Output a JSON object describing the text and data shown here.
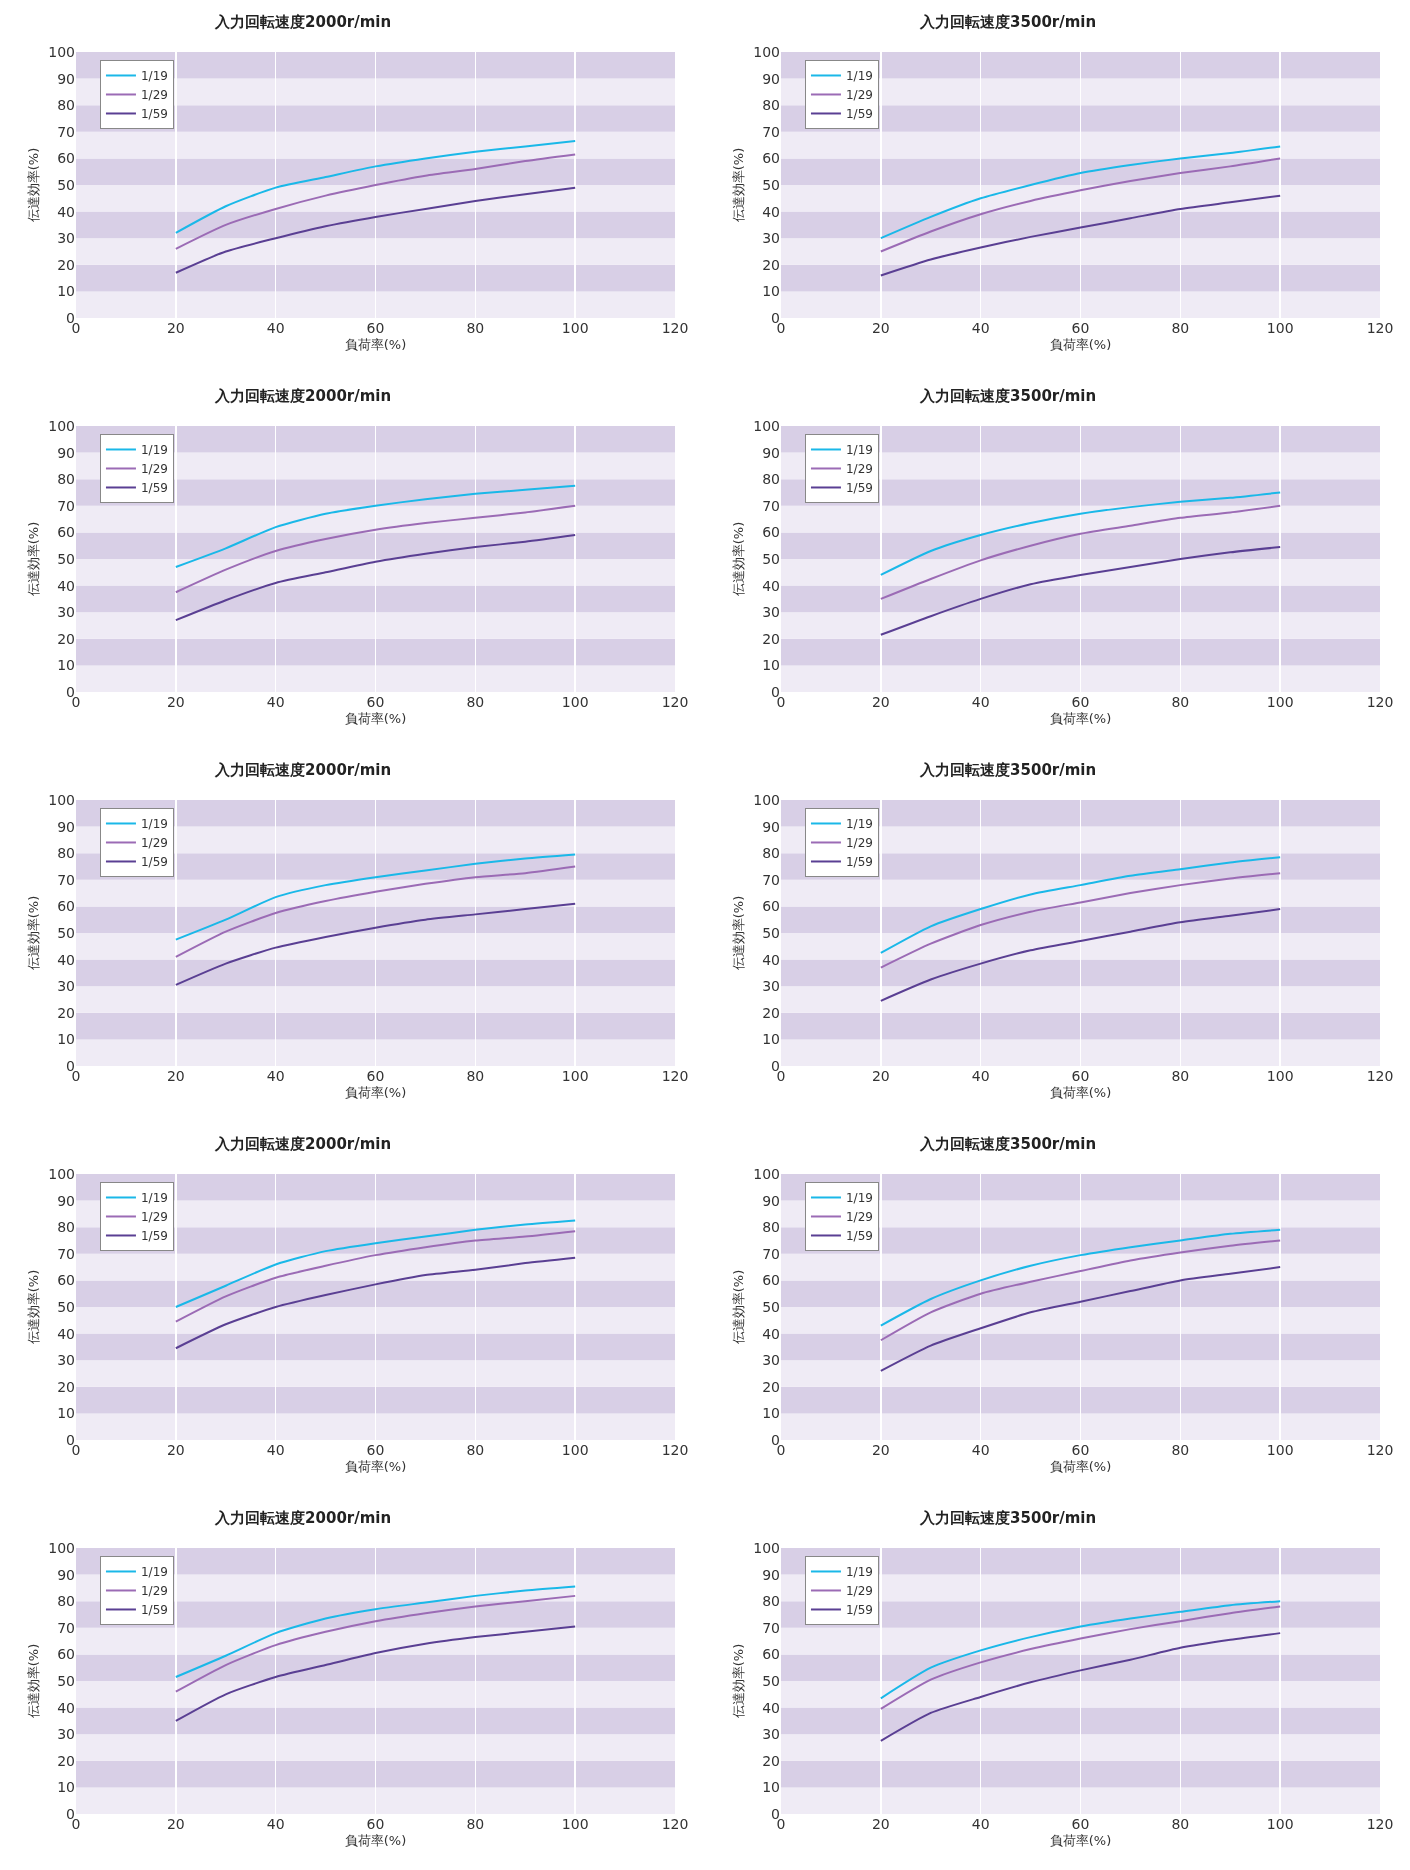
{
  "chart_data": [
    {
      "type": "line",
      "title": "入力回転速度2000r/min",
      "xlabel": "負荷率(%)",
      "ylabel": "伝達効率(%)",
      "x": [
        20,
        30,
        40,
        50,
        60,
        70,
        80,
        90,
        100
      ],
      "xlim": [
        0,
        120
      ],
      "xticks": [
        0,
        20,
        40,
        60,
        80,
        100,
        120
      ],
      "ylim": [
        0,
        100
      ],
      "yticks": [
        0,
        10,
        20,
        30,
        40,
        50,
        60,
        70,
        80,
        90,
        100
      ],
      "grid": true,
      "legend": "top left",
      "series": [
        {
          "name": "1/19",
          "color": "#1ab8e8",
          "values": [
            32,
            42,
            49,
            53,
            57,
            60,
            62.5,
            64.5,
            66.5
          ]
        },
        {
          "name": "1/29",
          "color": "#9b6bb5",
          "values": [
            26,
            35,
            41,
            46,
            50,
            53.5,
            56,
            59,
            61.5
          ]
        },
        {
          "name": "1/59",
          "color": "#5a3f93",
          "values": [
            17,
            25,
            30,
            34.5,
            38,
            41,
            44,
            46.5,
            49
          ]
        }
      ]
    },
    {
      "type": "line",
      "title": "入力回転速度3500r/min",
      "xlabel": "負荷率(%)",
      "ylabel": "伝達効率(%)",
      "x": [
        20,
        30,
        40,
        50,
        60,
        70,
        80,
        90,
        100
      ],
      "xlim": [
        0,
        120
      ],
      "xticks": [
        0,
        20,
        40,
        60,
        80,
        100,
        120
      ],
      "ylim": [
        0,
        100
      ],
      "yticks": [
        0,
        10,
        20,
        30,
        40,
        50,
        60,
        70,
        80,
        90,
        100
      ],
      "grid": true,
      "legend": "top left",
      "series": [
        {
          "name": "1/19",
          "color": "#1ab8e8",
          "values": [
            30,
            38,
            45,
            50,
            54.5,
            57.5,
            60,
            62,
            64.5
          ]
        },
        {
          "name": "1/29",
          "color": "#9b6bb5",
          "values": [
            25,
            32.5,
            39,
            44,
            48,
            51.5,
            54.5,
            57,
            60
          ]
        },
        {
          "name": "1/59",
          "color": "#5a3f93",
          "values": [
            16,
            22,
            26.5,
            30.5,
            34,
            37.5,
            41,
            43.5,
            46
          ]
        }
      ]
    },
    {
      "type": "line",
      "title": "入力回転速度2000r/min",
      "xlabel": "負荷率(%)",
      "ylabel": "伝達効率(%)",
      "x": [
        20,
        30,
        40,
        50,
        60,
        70,
        80,
        90,
        100
      ],
      "xlim": [
        0,
        120
      ],
      "xticks": [
        0,
        20,
        40,
        60,
        80,
        100,
        120
      ],
      "ylim": [
        0,
        100
      ],
      "yticks": [
        0,
        10,
        20,
        30,
        40,
        50,
        60,
        70,
        80,
        90,
        100
      ],
      "grid": true,
      "legend": "top left",
      "series": [
        {
          "name": "1/19",
          "color": "#1ab8e8",
          "values": [
            47,
            54,
            62,
            67,
            70,
            72.5,
            74.5,
            76,
            77.5
          ]
        },
        {
          "name": "1/29",
          "color": "#9b6bb5",
          "values": [
            37.5,
            46,
            53,
            57.5,
            61,
            63.5,
            65.5,
            67.5,
            70
          ]
        },
        {
          "name": "1/59",
          "color": "#5a3f93",
          "values": [
            27,
            34.5,
            41,
            45,
            49,
            52,
            54.5,
            56.5,
            59
          ]
        }
      ]
    },
    {
      "type": "line",
      "title": "入力回転速度3500r/min",
      "xlabel": "負荷率(%)",
      "ylabel": "伝達効率(%)",
      "x": [
        20,
        30,
        40,
        50,
        60,
        70,
        80,
        90,
        100
      ],
      "xlim": [
        0,
        120
      ],
      "xticks": [
        0,
        20,
        40,
        60,
        80,
        100,
        120
      ],
      "ylim": [
        0,
        100
      ],
      "yticks": [
        0,
        10,
        20,
        30,
        40,
        50,
        60,
        70,
        80,
        90,
        100
      ],
      "grid": true,
      "legend": "top left",
      "series": [
        {
          "name": "1/19",
          "color": "#1ab8e8",
          "values": [
            44,
            53,
            59,
            63.5,
            67,
            69.5,
            71.5,
            73,
            75
          ]
        },
        {
          "name": "1/29",
          "color": "#9b6bb5",
          "values": [
            35,
            42.5,
            49.5,
            55,
            59.5,
            62.5,
            65.5,
            67.5,
            70
          ]
        },
        {
          "name": "1/59",
          "color": "#5a3f93",
          "values": [
            21.5,
            28.5,
            35,
            40.5,
            44,
            47,
            50,
            52.5,
            54.5
          ]
        }
      ]
    },
    {
      "type": "line",
      "title": "入力回転速度2000r/min",
      "xlabel": "負荷率(%)",
      "ylabel": "伝達効率(%)",
      "x": [
        20,
        30,
        40,
        50,
        60,
        70,
        80,
        90,
        100
      ],
      "xlim": [
        0,
        120
      ],
      "xticks": [
        0,
        20,
        40,
        60,
        80,
        100,
        120
      ],
      "ylim": [
        0,
        100
      ],
      "yticks": [
        0,
        10,
        20,
        30,
        40,
        50,
        60,
        70,
        80,
        90,
        100
      ],
      "grid": true,
      "legend": "top left",
      "series": [
        {
          "name": "1/19",
          "color": "#1ab8e8",
          "values": [
            47.5,
            55,
            63.5,
            68,
            71,
            73.5,
            76,
            78,
            79.5
          ]
        },
        {
          "name": "1/29",
          "color": "#9b6bb5",
          "values": [
            41,
            50.5,
            57.5,
            62,
            65.5,
            68.5,
            71,
            72.5,
            75
          ]
        },
        {
          "name": "1/59",
          "color": "#5a3f93",
          "values": [
            30.5,
            38.5,
            44.5,
            48.5,
            52,
            55,
            57,
            59,
            61
          ]
        }
      ]
    },
    {
      "type": "line",
      "title": "入力回転速度3500r/min",
      "xlabel": "負荷率(%)",
      "ylabel": "伝達効率(%)",
      "x": [
        20,
        30,
        40,
        50,
        60,
        70,
        80,
        90,
        100
      ],
      "xlim": [
        0,
        120
      ],
      "xticks": [
        0,
        20,
        40,
        60,
        80,
        100,
        120
      ],
      "ylim": [
        0,
        100
      ],
      "yticks": [
        0,
        10,
        20,
        30,
        40,
        50,
        60,
        70,
        80,
        90,
        100
      ],
      "grid": true,
      "legend": "top left",
      "series": [
        {
          "name": "1/19",
          "color": "#1ab8e8",
          "values": [
            42.5,
            52.5,
            59,
            64.5,
            68,
            71.5,
            74,
            76.5,
            78.5
          ]
        },
        {
          "name": "1/29",
          "color": "#9b6bb5",
          "values": [
            37,
            46,
            53,
            58,
            61.5,
            65,
            68,
            70.5,
            72.5
          ]
        },
        {
          "name": "1/59",
          "color": "#5a3f93",
          "values": [
            24.5,
            32.5,
            38.5,
            43.5,
            47,
            50.5,
            54,
            56.5,
            59
          ]
        }
      ]
    },
    {
      "type": "line",
      "title": "入力回転速度2000r/min",
      "xlabel": "負荷率(%)",
      "ylabel": "伝達効率(%)",
      "x": [
        20,
        30,
        40,
        50,
        60,
        70,
        80,
        90,
        100
      ],
      "xlim": [
        0,
        120
      ],
      "xticks": [
        0,
        20,
        40,
        60,
        80,
        100,
        120
      ],
      "ylim": [
        0,
        100
      ],
      "yticks": [
        0,
        10,
        20,
        30,
        40,
        50,
        60,
        70,
        80,
        90,
        100
      ],
      "grid": true,
      "legend": "top left",
      "series": [
        {
          "name": "1/19",
          "color": "#1ab8e8",
          "values": [
            50,
            58,
            66,
            71,
            74,
            76.5,
            79,
            81,
            82.5
          ]
        },
        {
          "name": "1/29",
          "color": "#9b6bb5",
          "values": [
            44.5,
            54,
            61,
            65.5,
            69.5,
            72.5,
            75,
            76.5,
            78.5
          ]
        },
        {
          "name": "1/59",
          "color": "#5a3f93",
          "values": [
            34.5,
            43.5,
            50,
            54.5,
            58.5,
            62,
            64,
            66.5,
            68.5
          ]
        }
      ]
    },
    {
      "type": "line",
      "title": "入力回転速度3500r/min",
      "xlabel": "負荷率(%)",
      "ylabel": "伝達効率(%)",
      "x": [
        20,
        30,
        40,
        50,
        60,
        70,
        80,
        90,
        100
      ],
      "xlim": [
        0,
        120
      ],
      "xticks": [
        0,
        20,
        40,
        60,
        80,
        100,
        120
      ],
      "ylim": [
        0,
        100
      ],
      "yticks": [
        0,
        10,
        20,
        30,
        40,
        50,
        60,
        70,
        80,
        90,
        100
      ],
      "grid": true,
      "legend": "top left",
      "series": [
        {
          "name": "1/19",
          "color": "#1ab8e8",
          "values": [
            43,
            53,
            60,
            65.5,
            69.5,
            72.5,
            75,
            77.5,
            79
          ]
        },
        {
          "name": "1/29",
          "color": "#9b6bb5",
          "values": [
            37.5,
            48,
            55,
            59.5,
            63.5,
            67.5,
            70.5,
            73,
            75
          ]
        },
        {
          "name": "1/59",
          "color": "#5a3f93",
          "values": [
            26,
            35.5,
            42,
            48,
            52,
            56,
            60,
            62.5,
            65
          ]
        }
      ]
    },
    {
      "type": "line",
      "title": "入力回転速度2000r/min",
      "xlabel": "負荷率(%)",
      "ylabel": "伝達効率(%)",
      "x": [
        20,
        30,
        40,
        50,
        60,
        70,
        80,
        90,
        100
      ],
      "xlim": [
        0,
        120
      ],
      "xticks": [
        0,
        20,
        40,
        60,
        80,
        100,
        120
      ],
      "ylim": [
        0,
        100
      ],
      "yticks": [
        0,
        10,
        20,
        30,
        40,
        50,
        60,
        70,
        80,
        90,
        100
      ],
      "grid": true,
      "legend": "top left",
      "series": [
        {
          "name": "1/19",
          "color": "#1ab8e8",
          "values": [
            51.5,
            59.5,
            68,
            73.5,
            77,
            79.5,
            82,
            84,
            85.5
          ]
        },
        {
          "name": "1/29",
          "color": "#9b6bb5",
          "values": [
            46,
            56,
            63.5,
            68.5,
            72.5,
            75.5,
            78,
            80,
            82
          ]
        },
        {
          "name": "1/59",
          "color": "#5a3f93",
          "values": [
            35,
            45,
            51.5,
            56,
            60.5,
            64,
            66.5,
            68.5,
            70.5
          ]
        }
      ]
    },
    {
      "type": "line",
      "title": "入力回転速度3500r/min",
      "xlabel": "負荷率(%)",
      "ylabel": "伝達効率(%)",
      "x": [
        20,
        30,
        40,
        50,
        60,
        70,
        80,
        90,
        100
      ],
      "xlim": [
        0,
        120
      ],
      "xticks": [
        0,
        20,
        40,
        60,
        80,
        100,
        120
      ],
      "ylim": [
        0,
        100
      ],
      "yticks": [
        0,
        10,
        20,
        30,
        40,
        50,
        60,
        70,
        80,
        90,
        100
      ],
      "grid": true,
      "legend": "top left",
      "series": [
        {
          "name": "1/19",
          "color": "#1ab8e8",
          "values": [
            43.5,
            55,
            61.5,
            66.5,
            70.5,
            73.5,
            76,
            78.5,
            80
          ]
        },
        {
          "name": "1/29",
          "color": "#9b6bb5",
          "values": [
            39.5,
            50.5,
            57,
            62,
            66,
            69.5,
            72.5,
            75.5,
            78
          ]
        },
        {
          "name": "1/59",
          "color": "#5a3f93",
          "values": [
            27.5,
            38,
            44,
            49.5,
            54,
            58,
            62.5,
            65.5,
            68
          ]
        }
      ]
    }
  ]
}
